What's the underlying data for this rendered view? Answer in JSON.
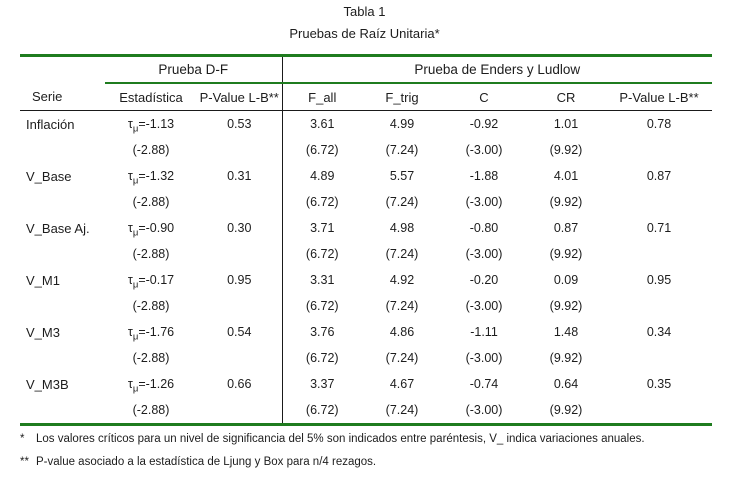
{
  "title": {
    "line1": "Tabla 1",
    "line2": "Pruebas de Raíz Unitaria*"
  },
  "table": {
    "group_headers": {
      "df": "Prueba D-F",
      "enders_ludlow": "Prueba de Enders y Ludlow"
    },
    "columns": [
      "Serie",
      "Estadística",
      "P-Value L-B**",
      "F_all",
      "F_trig",
      "C",
      "CR",
      "P-Value L-B**"
    ],
    "rows": [
      {
        "serie": "Inflación",
        "stat": {
          "sym": "τ",
          "sub": "μ",
          "val": "=-1.13",
          "crit": "(-2.88)"
        },
        "pv_df": "0.53",
        "f_all": {
          "val": "3.61",
          "crit": "(6.72)"
        },
        "f_trig": {
          "val": "4.99",
          "crit": "(7.24)"
        },
        "c": {
          "val": "-0.92",
          "crit": "(-3.00)"
        },
        "cr": {
          "val": "1.01",
          "crit": "(9.92)"
        },
        "pv_el": "0.78"
      },
      {
        "serie": "V_Base",
        "stat": {
          "sym": "τ",
          "sub": "μ",
          "val": "=-1.32",
          "crit": "(-2.88)"
        },
        "pv_df": "0.31",
        "f_all": {
          "val": "4.89",
          "crit": "(6.72)"
        },
        "f_trig": {
          "val": "5.57",
          "crit": "(7.24)"
        },
        "c": {
          "val": "-1.88",
          "crit": "(-3.00)"
        },
        "cr": {
          "val": "4.01",
          "crit": "(9.92)"
        },
        "pv_el": "0.87"
      },
      {
        "serie": "V_Base Aj.",
        "stat": {
          "sym": "τ",
          "sub": "μ",
          "val": "=-0.90",
          "crit": "(-2.88)"
        },
        "pv_df": "0.30",
        "f_all": {
          "val": "3.71",
          "crit": "(6.72)"
        },
        "f_trig": {
          "val": "4.98",
          "crit": "(7.24)"
        },
        "c": {
          "val": "-0.80",
          "crit": "(-3.00)"
        },
        "cr": {
          "val": "0.87",
          "crit": "(9.92)"
        },
        "pv_el": "0.71"
      },
      {
        "serie": "V_M1",
        "stat": {
          "sym": "τ",
          "sub": "μ",
          "val": "=-0.17",
          "crit": "(-2.88)"
        },
        "pv_df": "0.95",
        "f_all": {
          "val": "3.31",
          "crit": "(6.72)"
        },
        "f_trig": {
          "val": "4.92",
          "crit": "(7.24)"
        },
        "c": {
          "val": "-0.20",
          "crit": "(-3.00)"
        },
        "cr": {
          "val": "0.09",
          "crit": "(9.92)"
        },
        "pv_el": "0.95"
      },
      {
        "serie": "V_M3",
        "stat": {
          "sym": "τ",
          "sub": "μ",
          "val": "=-1.76",
          "crit": "(-2.88)"
        },
        "pv_df": "0.54",
        "f_all": {
          "val": "3.76",
          "crit": "(6.72)"
        },
        "f_trig": {
          "val": "4.86",
          "crit": "(7.24)"
        },
        "c": {
          "val": "-1.11",
          "crit": "(-3.00)"
        },
        "cr": {
          "val": "1.48",
          "crit": "(9.92)"
        },
        "pv_el": "0.34"
      },
      {
        "serie": "V_M3B",
        "stat": {
          "sym": "τ",
          "sub": "μ",
          "val": "=-1.26",
          "crit": "(-2.88)"
        },
        "pv_df": "0.66",
        "f_all": {
          "val": "3.37",
          "crit": "(6.72)"
        },
        "f_trig": {
          "val": "4.67",
          "crit": "(7.24)"
        },
        "c": {
          "val": "-0.74",
          "crit": "(-3.00)"
        },
        "cr": {
          "val": "0.64",
          "crit": "(9.92)"
        },
        "pv_el": "0.35"
      }
    ]
  },
  "footnotes": [
    {
      "marker": "*",
      "text": "Los valores críticos para un nivel de significancia del 5% son indicados entre paréntesis, V_ indica variaciones anuales."
    },
    {
      "marker": "**",
      "text": "P-value asociado a la estadística de Ljung y Box para n/4 rezagos."
    }
  ],
  "colors": {
    "rule_green": "#1f7c1f",
    "rule_black": "#1a1a1a",
    "text": "#1d1d1d"
  }
}
